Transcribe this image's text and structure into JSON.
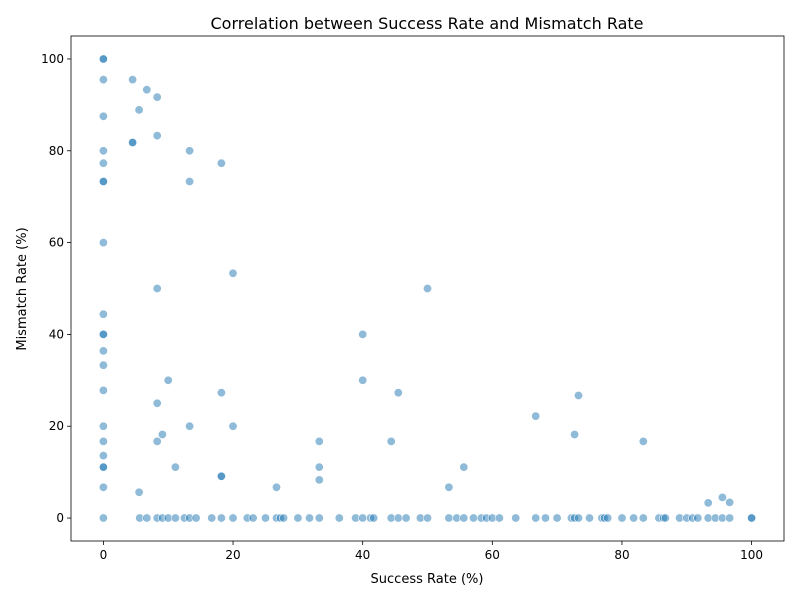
{
  "chart_data": {
    "type": "scatter",
    "title": "Correlation between Success Rate and Mismatch Rate",
    "xlabel": "Success Rate (%)",
    "ylabel": "Mismatch Rate (%)",
    "xlim": [
      -5,
      105
    ],
    "ylim": [
      -5,
      105
    ],
    "xticks": [
      0,
      20,
      40,
      60,
      80,
      100
    ],
    "yticks": [
      0,
      20,
      40,
      60,
      80,
      100
    ],
    "grid": false,
    "legend": "none",
    "color": "#1f77b4",
    "points": [
      [
        0,
        100
      ],
      [
        0,
        100
      ],
      [
        0,
        95.5
      ],
      [
        0,
        87.5
      ],
      [
        0,
        80
      ],
      [
        0,
        77.3
      ],
      [
        0,
        73.3
      ],
      [
        0,
        73.3
      ],
      [
        0,
        60
      ],
      [
        0,
        44.4
      ],
      [
        0,
        40
      ],
      [
        0,
        40
      ],
      [
        0,
        36.4
      ],
      [
        0,
        33.3
      ],
      [
        0,
        27.8
      ],
      [
        0,
        20
      ],
      [
        0,
        16.7
      ],
      [
        0,
        13.6
      ],
      [
        0,
        11.1
      ],
      [
        0,
        11.1
      ],
      [
        0,
        6.7
      ],
      [
        0,
        0
      ],
      [
        4.5,
        95.5
      ],
      [
        4.5,
        81.8
      ],
      [
        4.5,
        81.8
      ],
      [
        5.5,
        88.9
      ],
      [
        6.7,
        93.3
      ],
      [
        8.3,
        91.7
      ],
      [
        8.3,
        83.3
      ],
      [
        8.3,
        50
      ],
      [
        8.3,
        25
      ],
      [
        8.3,
        16.7
      ],
      [
        9.1,
        18.2
      ],
      [
        10,
        30
      ],
      [
        11.1,
        11.1
      ],
      [
        13.3,
        80
      ],
      [
        13.3,
        73.3
      ],
      [
        13.3,
        20
      ],
      [
        5.5,
        5.6
      ],
      [
        18.2,
        77.3
      ],
      [
        18.2,
        27.3
      ],
      [
        18.2,
        9.1
      ],
      [
        18.2,
        9.1
      ],
      [
        20,
        53.3
      ],
      [
        20,
        20
      ],
      [
        26.7,
        6.7
      ],
      [
        33.3,
        16.7
      ],
      [
        33.3,
        11.1
      ],
      [
        33.3,
        8.3
      ],
      [
        40,
        40
      ],
      [
        40,
        30
      ],
      [
        44.4,
        16.7
      ],
      [
        45.5,
        27.3
      ],
      [
        50,
        50
      ],
      [
        53.3,
        6.7
      ],
      [
        55.6,
        11.1
      ],
      [
        66.7,
        22.2
      ],
      [
        72.7,
        18.2
      ],
      [
        73.3,
        26.7
      ],
      [
        83.3,
        16.7
      ],
      [
        93.3,
        3.3
      ],
      [
        95.5,
        4.5
      ],
      [
        96.6,
        3.4
      ],
      [
        5.6,
        0
      ],
      [
        6.7,
        0
      ],
      [
        8.3,
        0
      ],
      [
        9.1,
        0
      ],
      [
        10,
        0
      ],
      [
        11.1,
        0
      ],
      [
        12.5,
        0
      ],
      [
        13.3,
        0
      ],
      [
        14.3,
        0
      ],
      [
        16.7,
        0
      ],
      [
        18.2,
        0
      ],
      [
        20,
        0
      ],
      [
        22.2,
        0
      ],
      [
        23.1,
        0
      ],
      [
        25,
        0
      ],
      [
        26.7,
        0
      ],
      [
        27.3,
        0
      ],
      [
        27.8,
        0
      ],
      [
        30,
        0
      ],
      [
        31.8,
        0
      ],
      [
        33.3,
        0
      ],
      [
        36.4,
        0
      ],
      [
        38.9,
        0
      ],
      [
        40,
        0
      ],
      [
        41.2,
        0
      ],
      [
        41.7,
        0
      ],
      [
        44.4,
        0
      ],
      [
        45.5,
        0
      ],
      [
        46.7,
        0
      ],
      [
        48.9,
        0
      ],
      [
        50,
        0
      ],
      [
        53.3,
        0
      ],
      [
        54.5,
        0
      ],
      [
        55.6,
        0
      ],
      [
        57.1,
        0
      ],
      [
        58.3,
        0
      ],
      [
        59.1,
        0
      ],
      [
        60,
        0
      ],
      [
        61.1,
        0
      ],
      [
        63.6,
        0
      ],
      [
        66.7,
        0
      ],
      [
        68.2,
        0
      ],
      [
        70,
        0
      ],
      [
        72.2,
        0
      ],
      [
        72.7,
        0
      ],
      [
        73.3,
        0
      ],
      [
        75,
        0
      ],
      [
        76.9,
        0
      ],
      [
        77.3,
        0
      ],
      [
        77.8,
        0
      ],
      [
        80,
        0
      ],
      [
        81.8,
        0
      ],
      [
        83.3,
        0
      ],
      [
        85.7,
        0
      ],
      [
        86.4,
        0
      ],
      [
        86.7,
        0
      ],
      [
        88.9,
        0
      ],
      [
        90,
        0
      ],
      [
        90.9,
        0
      ],
      [
        91.7,
        0
      ],
      [
        93.3,
        0
      ],
      [
        94.4,
        0
      ],
      [
        95.5,
        0
      ],
      [
        96.6,
        0
      ],
      [
        100,
        0
      ],
      [
        100,
        0
      ]
    ]
  }
}
